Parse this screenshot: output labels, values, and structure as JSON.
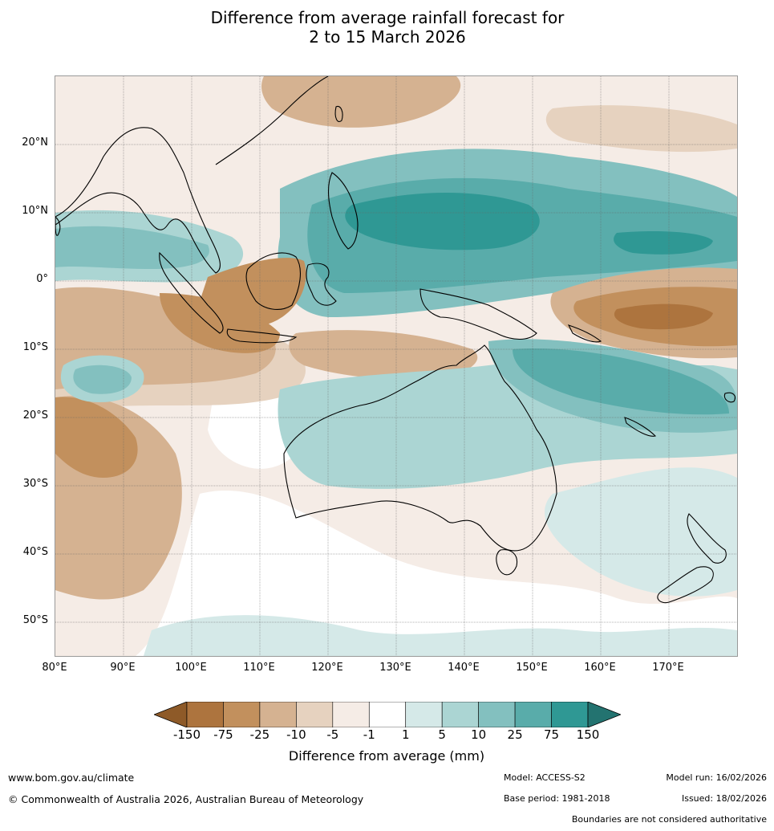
{
  "title": {
    "line1": "Difference from average rainfall forecast for",
    "line2": "2 to 15 March 2026"
  },
  "map": {
    "region": "Australia, Indonesia and the western Pacific",
    "lat_range": [
      "55°S",
      "30°N"
    ],
    "lon_range": [
      "80°E",
      "180°E"
    ],
    "lat_labels": [
      "20°N",
      "10°N",
      "0°",
      "10°S",
      "20°S",
      "30°S",
      "40°S",
      "50°S"
    ],
    "lon_labels": [
      "80°E",
      "90°E",
      "100°E",
      "110°E",
      "120°E",
      "130°E",
      "140°E",
      "150°E",
      "160°E",
      "170°E"
    ]
  },
  "legend": {
    "title": "Difference from average (mm)",
    "tick_labels": [
      "-150",
      "-75",
      "-25",
      "-10",
      "-5",
      "-1",
      "1",
      "5",
      "10",
      "25",
      "75",
      "150"
    ],
    "colors": {
      "below_min": "#8e5a28",
      "bins": [
        "#ad743e",
        "#c2905d",
        "#d5b291",
        "#e6d2bf",
        "#f5ece6",
        "#ffffff",
        "#d5e9e8",
        "#abd5d3",
        "#83c0bf",
        "#59acaa",
        "#2f9894"
      ],
      "above_max": "#237370"
    }
  },
  "footer": {
    "website": "www.bom.gov.au/climate",
    "copyright": "© Commonwealth of Australia 2026, Australian Bureau of Meteorology",
    "model": "Model: ACCESS-S2",
    "base_period": "Base period: 1981-2018",
    "model_run": "Model run: 16/02/2026",
    "issued": "Issued: 18/02/2026",
    "disclaimer": "Boundaries are not considered authoritative"
  }
}
